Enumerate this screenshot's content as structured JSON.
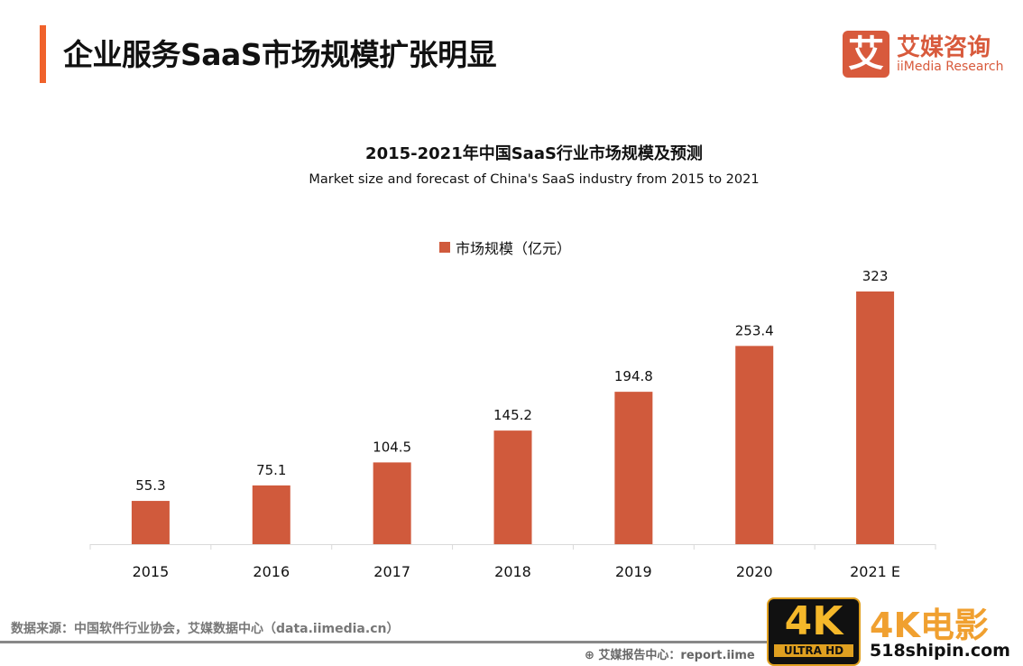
{
  "header": {
    "title": "企业服务SaaS市场规模扩张明显"
  },
  "logo": {
    "mark": "艾",
    "name_cn": "艾媒咨询",
    "name_en": "iiMedia Research"
  },
  "chart_data": {
    "type": "bar",
    "title": "2015-2021年中国SaaS行业市场规模及预测",
    "subtitle": "Market size and forecast of China's SaaS industry from 2015 to 2021",
    "categories": [
      "2015",
      "2016",
      "2017",
      "2018",
      "2019",
      "2020",
      "2021 E"
    ],
    "series": [
      {
        "name": "市场规模（亿元）",
        "values": [
          55.3,
          75.1,
          104.5,
          145.2,
          194.8,
          253.4,
          323
        ],
        "labels": [
          "55.3",
          "75.1",
          "104.5",
          "145.2",
          "194.8",
          "253.4",
          "323"
        ]
      }
    ],
    "ylim": [
      0,
      323
    ],
    "grid": false,
    "legend_position": "top-center",
    "colors": {
      "bar": "#d05a3c",
      "accent": "#f0622b"
    }
  },
  "footer": {
    "source": "数据来源：中国软件行业协会，艾媒数据中心（data.iimedia.cn）",
    "report": "艾媒报告中心：report.iime"
  },
  "watermark": {
    "badge": "4K",
    "badge_sub": "ULTRA HD",
    "name": "4K电影",
    "url": "518shipin.com"
  }
}
